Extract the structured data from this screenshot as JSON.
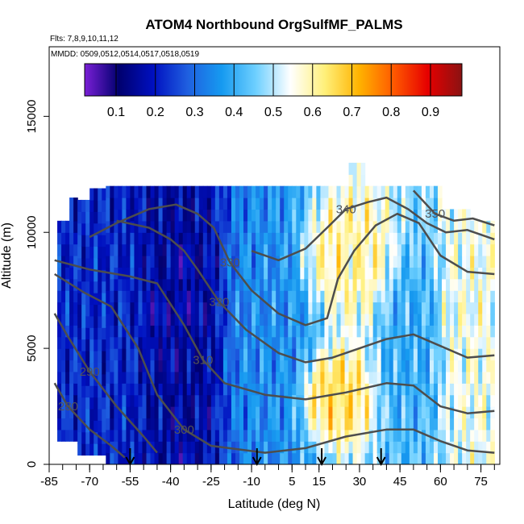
{
  "chart_data": {
    "type": "heatmap",
    "title": "ATOM4 Northbound OrgSulfMF_PALMS",
    "subtitle_flights": "Flts: 7,8,9,10,11,12",
    "subtitle_dates": "MMDD: 0509,0512,0514,0517,0518,0519",
    "xlabel": "Latitude (deg N)",
    "ylabel": "Altitude (m)",
    "xlim": [
      -85,
      82
    ],
    "ylim": [
      0,
      18000
    ],
    "x_ticks": [
      -85,
      -70,
      -55,
      -40,
      -25,
      -10,
      5,
      15,
      30,
      45,
      60,
      75
    ],
    "y_ticks": [
      0,
      5000,
      10000,
      15000
    ],
    "colorbar": {
      "range": [
        0.02,
        0.98
      ],
      "ticks": [
        0.1,
        0.2,
        0.3,
        0.4,
        0.5,
        0.6,
        0.7,
        0.8,
        0.9
      ],
      "colors": [
        "#7a1fd6",
        "#00006e",
        "#0010c0",
        "#1f5fe0",
        "#169af0",
        "#6fd0ff",
        "#ffffff",
        "#fff07a",
        "#ffb300",
        "#ff5a00",
        "#e60000",
        "#8b1212"
      ]
    },
    "field_regions": [
      {
        "x": [
          -82,
          -50
        ],
        "y": [
          0,
          10500
        ],
        "value": 0.22
      },
      {
        "x": [
          -50,
          -20
        ],
        "y": [
          0,
          12000
        ],
        "value": 0.15
      },
      {
        "x": [
          -20,
          10
        ],
        "y": [
          0,
          12000
        ],
        "value": 0.35
      },
      {
        "x": [
          10,
          40
        ],
        "y": [
          7000,
          11000
        ],
        "value": 0.6
      },
      {
        "x": [
          10,
          30
        ],
        "y": [
          1500,
          4500
        ],
        "value": 0.65
      },
      {
        "x": [
          40,
          60
        ],
        "y": [
          2000,
          9000
        ],
        "value": 0.4
      },
      {
        "x": [
          60,
          80
        ],
        "y": [
          2000,
          10000
        ],
        "value": 0.55
      }
    ],
    "contours": [
      {
        "label": "280",
        "level": 280,
        "points": [
          [
            -83,
            3500
          ],
          [
            -78,
            2500
          ],
          [
            -70,
            1500
          ],
          [
            -62,
            800
          ],
          [
            -57,
            300
          ]
        ]
      },
      {
        "label": "290",
        "level": 290,
        "points": [
          [
            -83,
            6500
          ],
          [
            -78,
            5500
          ],
          [
            -70,
            4000
          ],
          [
            -60,
            2500
          ],
          [
            -50,
            1200
          ],
          [
            -45,
            500
          ]
        ]
      },
      {
        "label": "300",
        "level": 300,
        "points": [
          [
            -83,
            8200
          ],
          [
            -72,
            7400
          ],
          [
            -62,
            6800
          ],
          [
            -52,
            5000
          ],
          [
            -45,
            3000
          ],
          [
            -35,
            1500
          ],
          [
            -25,
            800
          ],
          [
            -5,
            500
          ],
          [
            10,
            700
          ],
          [
            25,
            1200
          ],
          [
            40,
            1500
          ],
          [
            50,
            1500
          ],
          [
            60,
            1000
          ],
          [
            70,
            600
          ],
          [
            80,
            500
          ]
        ]
      },
      {
        "label": "310",
        "level": 310,
        "points": [
          [
            -83,
            8800
          ],
          [
            -70,
            8400
          ],
          [
            -55,
            8100
          ],
          [
            -45,
            7800
          ],
          [
            -35,
            6000
          ],
          [
            -28,
            4500
          ],
          [
            -20,
            3500
          ],
          [
            -5,
            3000
          ],
          [
            10,
            2800
          ],
          [
            25,
            3100
          ],
          [
            40,
            3500
          ],
          [
            50,
            3400
          ],
          [
            60,
            2500
          ],
          [
            70,
            2200
          ],
          [
            80,
            2300
          ]
        ]
      },
      {
        "label": "320",
        "level": 320,
        "points": [
          [
            -60,
            10500
          ],
          [
            -48,
            10200
          ],
          [
            -40,
            9700
          ],
          [
            -35,
            9200
          ],
          [
            -30,
            8400
          ],
          [
            -22,
            7000
          ],
          [
            -12,
            5800
          ],
          [
            0,
            4800
          ],
          [
            10,
            4400
          ],
          [
            20,
            4600
          ],
          [
            30,
            5000
          ],
          [
            40,
            5400
          ],
          [
            50,
            5600
          ],
          [
            60,
            5100
          ],
          [
            70,
            4600
          ],
          [
            80,
            4700
          ]
        ]
      },
      {
        "label": "330",
        "level": 330,
        "points": [
          [
            -70,
            9800
          ],
          [
            -60,
            10400
          ],
          [
            -48,
            11000
          ],
          [
            -38,
            11200
          ],
          [
            -30,
            10800
          ],
          [
            -24,
            10200
          ],
          [
            -18,
            8700
          ],
          [
            -10,
            7500
          ],
          [
            0,
            6500
          ],
          [
            10,
            6000
          ],
          [
            18,
            6300
          ],
          [
            22,
            8000
          ],
          [
            28,
            9200
          ],
          [
            36,
            10300
          ],
          [
            44,
            10800
          ],
          [
            52,
            10400
          ],
          [
            60,
            9000
          ],
          [
            70,
            8300
          ],
          [
            80,
            8200
          ]
        ]
      },
      {
        "label": "340",
        "level": 340,
        "points": [
          [
            -10,
            9200
          ],
          [
            0,
            8800
          ],
          [
            10,
            9300
          ],
          [
            18,
            10200
          ],
          [
            25,
            11000
          ],
          [
            33,
            11300
          ],
          [
            40,
            11500
          ],
          [
            48,
            11000
          ],
          [
            55,
            10400
          ],
          [
            62,
            10000
          ],
          [
            70,
            10100
          ],
          [
            80,
            9700
          ]
        ]
      },
      {
        "label": "350",
        "level": 350,
        "points": [
          [
            50,
            11800
          ],
          [
            58,
            10800
          ],
          [
            65,
            10500
          ],
          [
            72,
            10600
          ],
          [
            80,
            10300
          ]
        ]
      }
    ],
    "arrows_latitude": [
      -55,
      -8,
      16,
      38
    ]
  }
}
